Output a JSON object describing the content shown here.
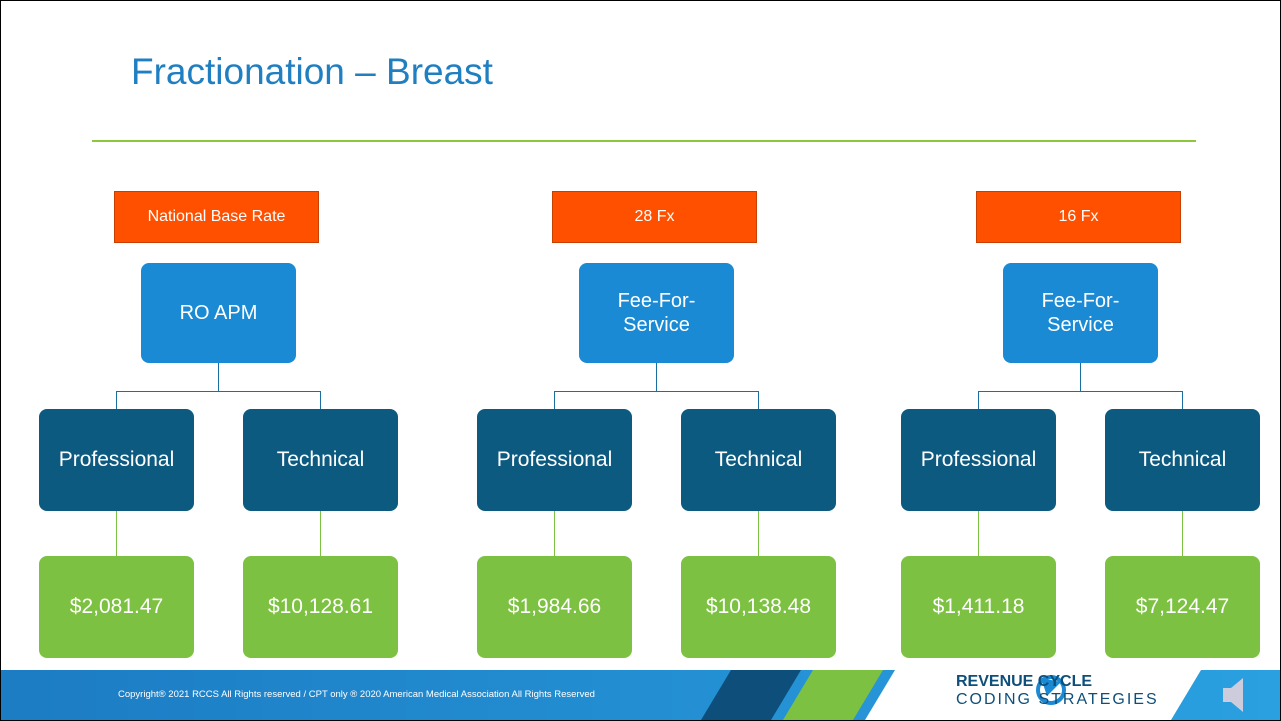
{
  "header": {
    "title": "Fractionation – Breast"
  },
  "groups": [
    {
      "header": "National Base Rate",
      "root": "RO APM",
      "children": [
        {
          "label": "Professional",
          "amount": "$2,081.47"
        },
        {
          "label": "Technical",
          "amount": "$10,128.61"
        }
      ]
    },
    {
      "header": "28 Fx",
      "root": "Fee-For-Service",
      "children": [
        {
          "label": "Professional",
          "amount": "$1,984.66"
        },
        {
          "label": "Technical",
          "amount": "$10,138.48"
        }
      ]
    },
    {
      "header": "16 Fx",
      "root": "Fee-For-Service",
      "children": [
        {
          "label": "Professional",
          "amount": "$1,411.18"
        },
        {
          "label": "Technical",
          "amount": "$7,124.47"
        }
      ]
    }
  ],
  "footer": {
    "copyright": "Copyright® 2021 RCCS All Rights reserved / CPT only ® 2020 American Medical Association All Rights Reserved",
    "logo": [
      "REVENUE CYCLE",
      "CODING STRATEGIES"
    ]
  }
}
